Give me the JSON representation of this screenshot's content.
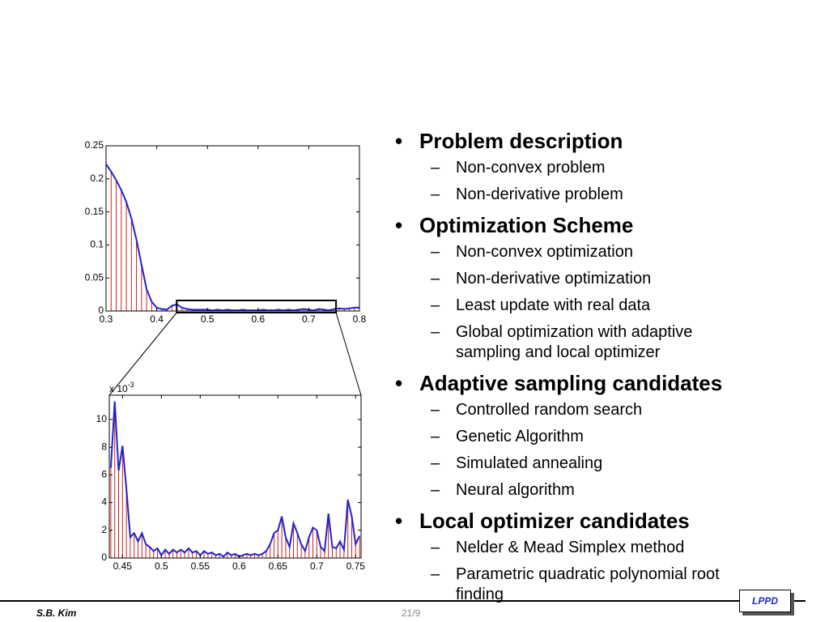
{
  "chart_data": [
    {
      "type": "stem-line",
      "xlim": [
        0.3,
        0.8
      ],
      "ylim": [
        0,
        0.25
      ],
      "xticks": [
        0.3,
        0.4,
        0.5,
        0.6,
        0.7,
        0.8
      ],
      "yticks": [
        0,
        0.05,
        0.1,
        0.15,
        0.2,
        0.25
      ],
      "line_color": "#2222cc",
      "stem_color": "#cc2222",
      "x": [
        0.3,
        0.31,
        0.32,
        0.33,
        0.34,
        0.35,
        0.36,
        0.37,
        0.38,
        0.39,
        0.4,
        0.41,
        0.42,
        0.43,
        0.44,
        0.45,
        0.46,
        0.47,
        0.48,
        0.49,
        0.5,
        0.51,
        0.52,
        0.53,
        0.54,
        0.55,
        0.56,
        0.57,
        0.58,
        0.59,
        0.6,
        0.61,
        0.62,
        0.63,
        0.64,
        0.65,
        0.66,
        0.67,
        0.68,
        0.69,
        0.7,
        0.71,
        0.72,
        0.73,
        0.74,
        0.75,
        0.76,
        0.77,
        0.78,
        0.79,
        0.8
      ],
      "values": [
        0.222,
        0.211,
        0.198,
        0.183,
        0.165,
        0.14,
        0.108,
        0.07,
        0.033,
        0.014,
        0.005,
        0.003,
        0.002,
        0.008,
        0.01,
        0.005,
        0.003,
        0.002,
        0.002,
        0.002,
        0.002,
        0.001,
        0.002,
        0.001,
        0.002,
        0.001,
        0.001,
        0.002,
        0.001,
        0.001,
        0.001,
        0.002,
        0.001,
        0.001,
        0.002,
        0.001,
        0.002,
        0.001,
        0.002,
        0.003,
        0.002,
        0.001,
        0.003,
        0.002,
        0.001,
        0.003,
        0.004,
        0.003,
        0.004,
        0.005,
        0.005
      ]
    },
    {
      "type": "stem-line",
      "xlim": [
        0.433,
        0.757
      ],
      "ylim": [
        0,
        11.75
      ],
      "xticks": [
        0.45,
        0.5,
        0.55,
        0.6,
        0.65,
        0.7,
        0.75
      ],
      "yticks": [
        0,
        2,
        4,
        6,
        8,
        10
      ],
      "y_axis_label": {
        "base": "x 10",
        "exponent": "-3"
      },
      "line_color": "#2222cc",
      "stem_color": "#cc2222",
      "x": [
        0.435,
        0.44,
        0.445,
        0.45,
        0.455,
        0.46,
        0.465,
        0.47,
        0.475,
        0.48,
        0.485,
        0.49,
        0.495,
        0.5,
        0.505,
        0.51,
        0.515,
        0.52,
        0.525,
        0.53,
        0.535,
        0.54,
        0.545,
        0.55,
        0.555,
        0.56,
        0.565,
        0.57,
        0.575,
        0.58,
        0.585,
        0.59,
        0.595,
        0.6,
        0.605,
        0.61,
        0.615,
        0.62,
        0.625,
        0.63,
        0.635,
        0.64,
        0.645,
        0.65,
        0.655,
        0.66,
        0.665,
        0.67,
        0.675,
        0.68,
        0.685,
        0.69,
        0.695,
        0.7,
        0.705,
        0.71,
        0.715,
        0.72,
        0.725,
        0.73,
        0.735,
        0.74,
        0.745,
        0.75,
        0.755
      ],
      "values": [
        6.5,
        11.3,
        6.3,
        8.1,
        5.0,
        1.5,
        1.8,
        1.2,
        1.8,
        1.0,
        0.8,
        0.5,
        0.7,
        0.2,
        0.6,
        0.3,
        0.6,
        0.4,
        0.6,
        0.4,
        0.7,
        0.4,
        0.5,
        0.2,
        0.5,
        0.3,
        0.4,
        0.2,
        0.3,
        0.1,
        0.4,
        0.2,
        0.3,
        0.1,
        0.2,
        0.3,
        0.2,
        0.3,
        0.2,
        0.3,
        0.5,
        1.0,
        1.8,
        2.0,
        3.0,
        1.5,
        0.8,
        2.5,
        1.8,
        1.0,
        0.5,
        1.5,
        2.2,
        2.0,
        0.8,
        0.5,
        3.2,
        0.8,
        0.7,
        1.2,
        0.6,
        4.2,
        3.0,
        1.0,
        1.6
      ]
    }
  ],
  "bullets": [
    {
      "text": "Problem description",
      "items": [
        "Non-convex problem",
        "Non-derivative problem"
      ]
    },
    {
      "text": "Optimization Scheme",
      "items": [
        "Non-convex optimization",
        "Non-derivative optimization",
        "Least update with real data",
        "Global optimization with adaptive sampling and local optimizer"
      ]
    },
    {
      "text": "Adaptive sampling candidates",
      "items": [
        "Controlled random search",
        "Genetic Algorithm",
        "Simulated annealing",
        "Neural algorithm"
      ]
    },
    {
      "text": "Local optimizer candidates",
      "items": [
        "Nelder & Mead Simplex method",
        "Parametric quadratic polynomial root finding"
      ]
    }
  ],
  "footer": {
    "author": "S.B. Kim",
    "page": "21/9",
    "logo": "LPPD"
  }
}
